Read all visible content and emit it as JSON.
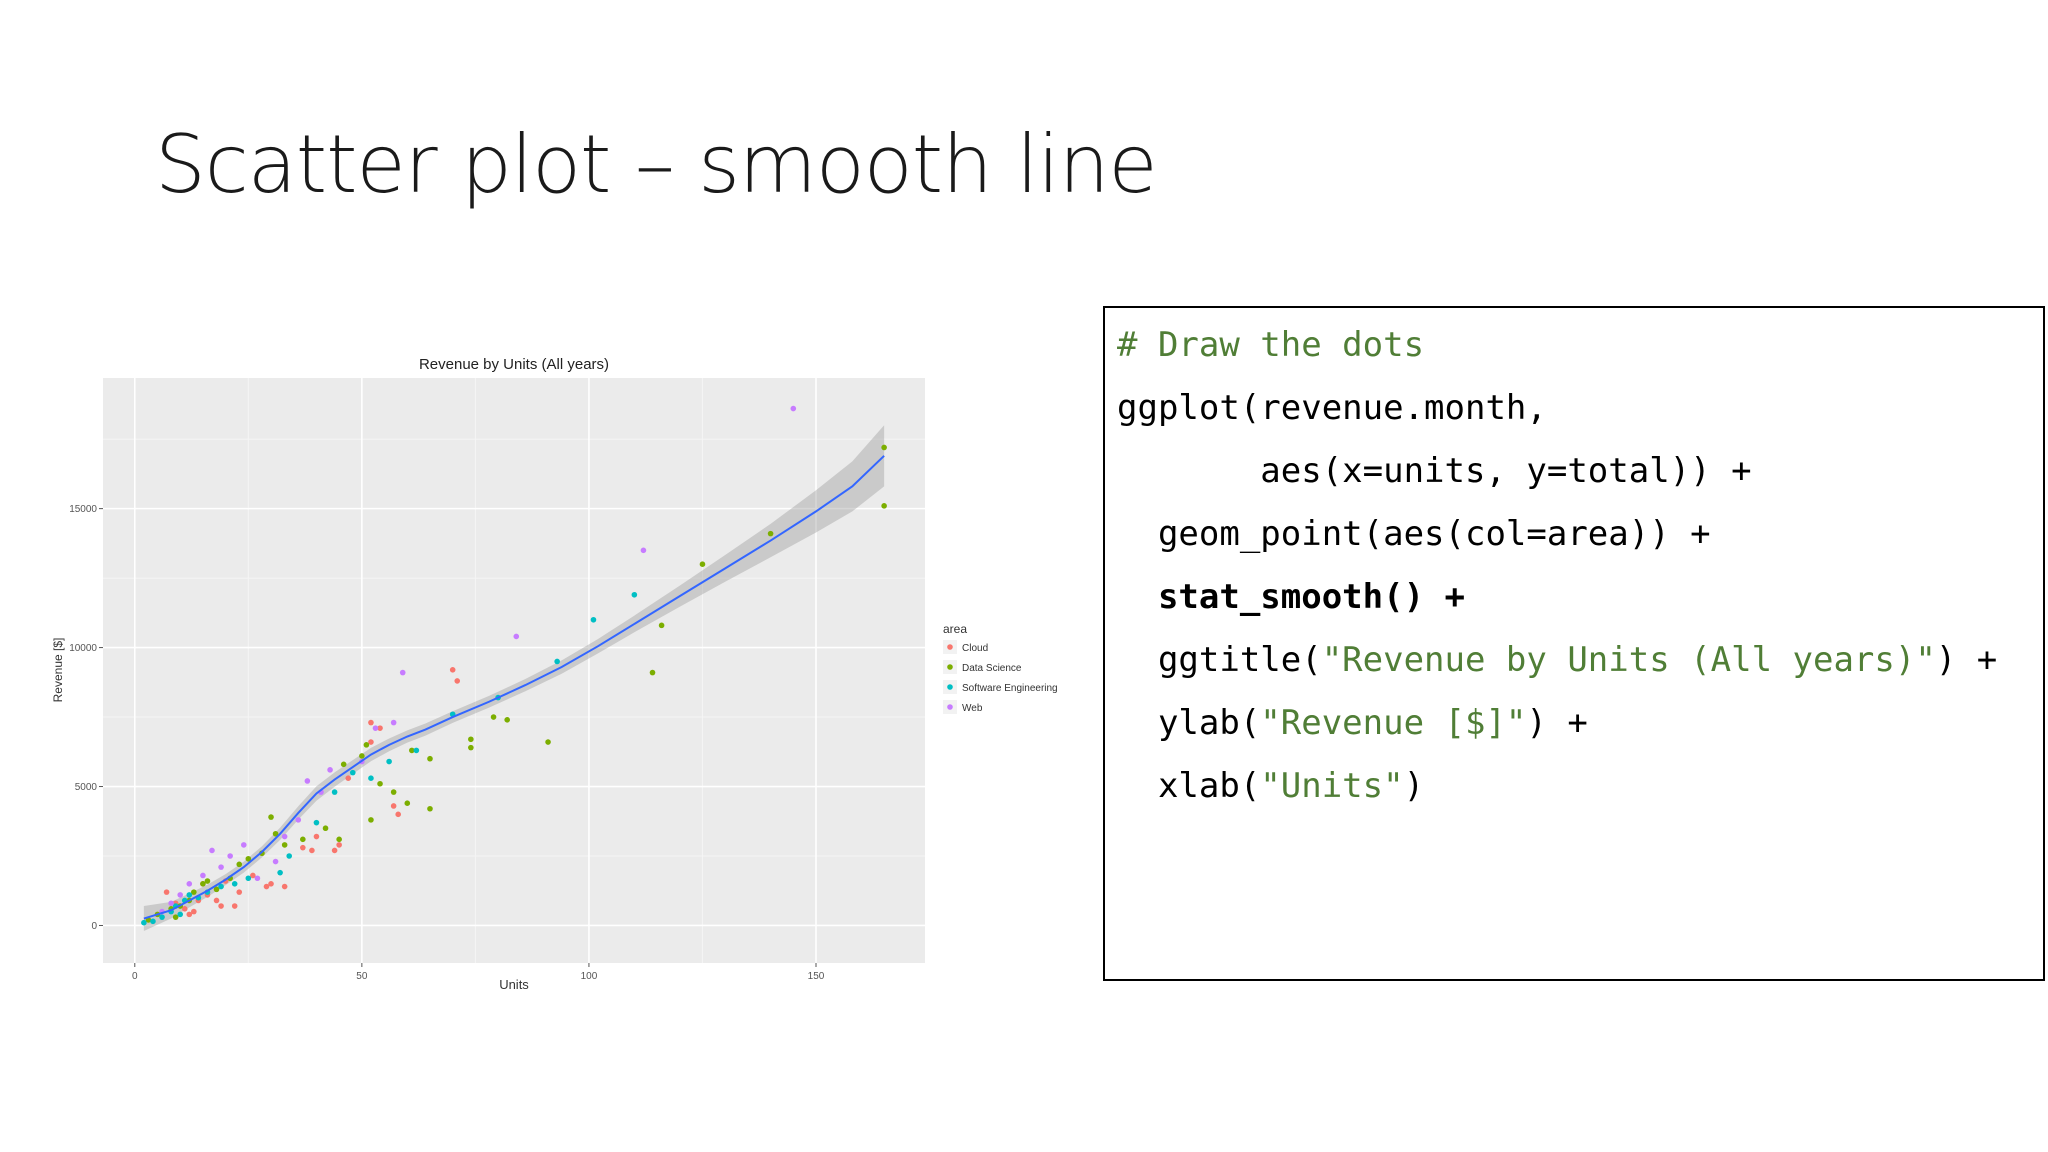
{
  "slide": {
    "title": "Scatter plot – smooth line"
  },
  "colors": {
    "Cloud": "#f8766d",
    "Data Science": "#7cae00",
    "Software Engineering": "#00bfc4",
    "Web": "#c77cff",
    "smooth_line": "#3366ff",
    "ribbon": "#999999",
    "panel_bg": "#ebebeb",
    "code_green": "#507e36"
  },
  "chart_data": {
    "type": "scatter",
    "title": "Revenue by Units (All years)",
    "xlabel": "Units",
    "ylabel": "Revenue [$]",
    "xlim": [
      -7,
      174
    ],
    "ylim": [
      -1350,
      19700
    ],
    "x_ticks": [
      0,
      50,
      100,
      150
    ],
    "y_ticks": [
      0,
      5000,
      10000,
      15000
    ],
    "x_tick_labels": [
      "0",
      "50",
      "100",
      "150"
    ],
    "y_tick_labels": [
      "0",
      "5000",
      "10000",
      "15000"
    ],
    "grid": true,
    "legend": {
      "title": "area",
      "position": "right"
    },
    "series": [
      {
        "name": "Cloud",
        "points": [
          [
            7,
            1200
          ],
          [
            9,
            800
          ],
          [
            11,
            600
          ],
          [
            12,
            400
          ],
          [
            13,
            500
          ],
          [
            14,
            900
          ],
          [
            15,
            1500
          ],
          [
            16,
            1100
          ],
          [
            18,
            900
          ],
          [
            19,
            700
          ],
          [
            20,
            1600
          ],
          [
            22,
            700
          ],
          [
            23,
            1200
          ],
          [
            26,
            1800
          ],
          [
            29,
            1400
          ],
          [
            30,
            1500
          ],
          [
            33,
            1400
          ],
          [
            37,
            2800
          ],
          [
            39,
            2700
          ],
          [
            40,
            3200
          ],
          [
            44,
            2700
          ],
          [
            45,
            2900
          ],
          [
            47,
            5300
          ],
          [
            52,
            6600
          ],
          [
            52,
            7300
          ],
          [
            54,
            7100
          ],
          [
            57,
            4300
          ],
          [
            58,
            4000
          ],
          [
            70,
            9200
          ],
          [
            71,
            8800
          ]
        ]
      },
      {
        "name": "Data Science",
        "points": [
          [
            3,
            200
          ],
          [
            5,
            400
          ],
          [
            8,
            600
          ],
          [
            9,
            300
          ],
          [
            10,
            700
          ],
          [
            12,
            900
          ],
          [
            13,
            1200
          ],
          [
            15,
            1500
          ],
          [
            16,
            1600
          ],
          [
            18,
            1300
          ],
          [
            21,
            1700
          ],
          [
            23,
            2200
          ],
          [
            25,
            2400
          ],
          [
            28,
            2600
          ],
          [
            30,
            3900
          ],
          [
            31,
            3300
          ],
          [
            33,
            2900
          ],
          [
            37,
            3100
          ],
          [
            42,
            3500
          ],
          [
            45,
            3100
          ],
          [
            46,
            5800
          ],
          [
            50,
            6100
          ],
          [
            51,
            6500
          ],
          [
            52,
            3800
          ],
          [
            54,
            5100
          ],
          [
            57,
            4800
          ],
          [
            60,
            4400
          ],
          [
            61,
            6300
          ],
          [
            65,
            6000
          ],
          [
            65,
            4200
          ],
          [
            74,
            6400
          ],
          [
            74,
            6700
          ],
          [
            79,
            7500
          ],
          [
            82,
            7400
          ],
          [
            91,
            6600
          ],
          [
            114,
            9100
          ],
          [
            116,
            10800
          ],
          [
            125,
            13000
          ],
          [
            140,
            14100
          ],
          [
            165,
            15100
          ],
          [
            165,
            17200
          ]
        ]
      },
      {
        "name": "Software Engineering",
        "points": [
          [
            2,
            100
          ],
          [
            4,
            150
          ],
          [
            6,
            300
          ],
          [
            8,
            500
          ],
          [
            9,
            700
          ],
          [
            10,
            400
          ],
          [
            11,
            900
          ],
          [
            12,
            1100
          ],
          [
            14,
            1000
          ],
          [
            16,
            1200
          ],
          [
            19,
            1400
          ],
          [
            22,
            1500
          ],
          [
            25,
            1700
          ],
          [
            32,
            1900
          ],
          [
            34,
            2500
          ],
          [
            40,
            3700
          ],
          [
            44,
            4800
          ],
          [
            48,
            5500
          ],
          [
            52,
            5300
          ],
          [
            56,
            5900
          ],
          [
            62,
            6300
          ],
          [
            70,
            7600
          ],
          [
            80,
            8200
          ],
          [
            93,
            9500
          ],
          [
            101,
            11000
          ],
          [
            110,
            11900
          ]
        ]
      },
      {
        "name": "Web",
        "points": [
          [
            6,
            500
          ],
          [
            8,
            800
          ],
          [
            10,
            1100
          ],
          [
            12,
            1500
          ],
          [
            15,
            1800
          ],
          [
            17,
            2700
          ],
          [
            19,
            2100
          ],
          [
            21,
            2500
          ],
          [
            24,
            2900
          ],
          [
            27,
            1700
          ],
          [
            31,
            2300
          ],
          [
            33,
            3200
          ],
          [
            36,
            3800
          ],
          [
            38,
            5200
          ],
          [
            41,
            4800
          ],
          [
            43,
            5600
          ],
          [
            50,
            5900
          ],
          [
            53,
            7100
          ],
          [
            57,
            7300
          ],
          [
            59,
            9100
          ],
          [
            84,
            10400
          ],
          [
            112,
            13500
          ],
          [
            145,
            18600
          ]
        ]
      }
    ],
    "smooth_fit": {
      "x": [
        2,
        8,
        12,
        16,
        20,
        24,
        28,
        32,
        36,
        40,
        44,
        48,
        52,
        56,
        60,
        64,
        70,
        78,
        86,
        94,
        102,
        110,
        120,
        130,
        140,
        150,
        158,
        165
      ],
      "y": [
        250,
        550,
        900,
        1250,
        1650,
        2100,
        2650,
        3300,
        4050,
        4750,
        5250,
        5700,
        6150,
        6500,
        6800,
        7050,
        7500,
        8050,
        8650,
        9300,
        10050,
        10850,
        11850,
        12850,
        13850,
        14900,
        15800,
        16900
      ],
      "ci_halfwidth": [
        450,
        300,
        250,
        220,
        200,
        200,
        200,
        220,
        240,
        260,
        260,
        250,
        240,
        230,
        220,
        220,
        210,
        210,
        220,
        240,
        260,
        300,
        380,
        480,
        600,
        760,
        900,
        1100
      ]
    }
  },
  "code": {
    "lines": [
      [
        {
          "t": "# Draw the dots",
          "s": "comment"
        }
      ],
      [
        {
          "t": "ggplot(revenue.month,",
          "s": "plain"
        }
      ],
      [
        {
          "t": "       aes(x=units, y=total)) +",
          "s": "plain"
        }
      ],
      [
        {
          "t": "  geom_point(aes(col=area)) +",
          "s": "plain"
        }
      ],
      [
        {
          "t": "  stat_smooth() +",
          "s": "bold"
        }
      ],
      [
        {
          "t": "  ggtitle(",
          "s": "plain"
        },
        {
          "t": "\"Revenue by Units (All years)\"",
          "s": "str"
        },
        {
          "t": ") +",
          "s": "plain"
        }
      ],
      [
        {
          "t": "  ylab(",
          "s": "plain"
        },
        {
          "t": "\"Revenue [$]\"",
          "s": "str"
        },
        {
          "t": ") +",
          "s": "plain"
        }
      ],
      [
        {
          "t": "  xlab(",
          "s": "plain"
        },
        {
          "t": "\"Units\"",
          "s": "str"
        },
        {
          "t": ")",
          "s": "plain"
        }
      ]
    ]
  }
}
